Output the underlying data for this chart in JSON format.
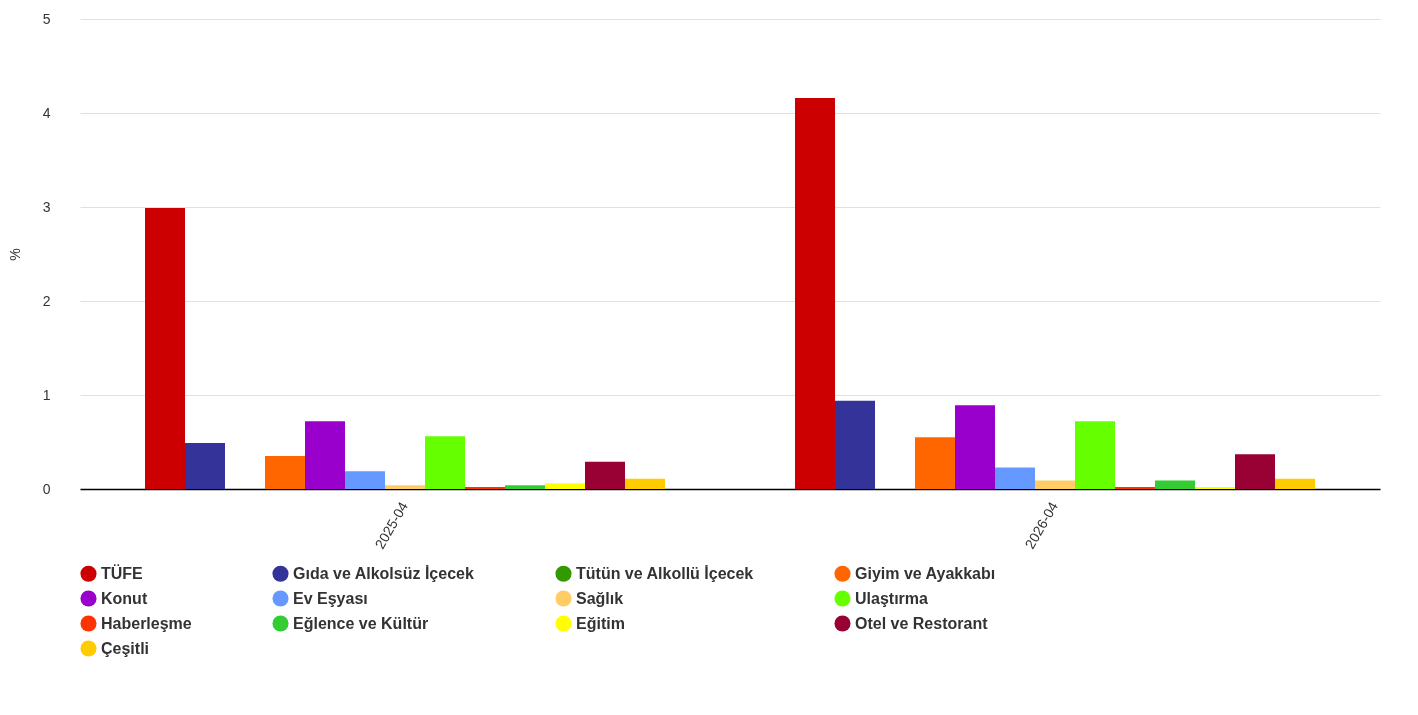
{
  "chart_data": {
    "type": "bar",
    "ylabel": "%",
    "categories": [
      "2025-04",
      "2026-04"
    ],
    "ylim": [
      0,
      5
    ],
    "yticks": [
      0,
      1,
      2,
      3,
      4,
      5
    ],
    "grid": "y",
    "legend": "bottom",
    "series": [
      {
        "name": "TÜFE",
        "color": "#cc0000",
        "values": [
          2.99,
          4.16
        ]
      },
      {
        "name": "Gıda ve Alkolsüz İçecek",
        "color": "#333399",
        "values": [
          0.49,
          0.94
        ]
      },
      {
        "name": "Tütün ve Alkollü İçecek",
        "color": "#339900",
        "values": [
          null,
          null
        ]
      },
      {
        "name": "Giyim ve Ayakkabı",
        "color": "#ff6600",
        "values": [
          0.35,
          0.55
        ]
      },
      {
        "name": "Konut",
        "color": "#9900cc",
        "values": [
          0.72,
          0.89
        ]
      },
      {
        "name": "Ev Eşyası",
        "color": "#6699ff",
        "values": [
          0.19,
          0.23
        ]
      },
      {
        "name": "Sağlık",
        "color": "#ffcc66",
        "values": [
          0.04,
          0.09
        ]
      },
      {
        "name": "Ulaştırma",
        "color": "#66ff00",
        "values": [
          0.56,
          0.72
        ]
      },
      {
        "name": "Haberleşme",
        "color": "#ff3300",
        "values": [
          0.02,
          0.02
        ]
      },
      {
        "name": "Eğlence ve Kültür",
        "color": "#33cc33",
        "values": [
          0.04,
          0.09
        ]
      },
      {
        "name": "Eğitim",
        "color": "#ffff00",
        "values": [
          0.06,
          0.02
        ]
      },
      {
        "name": "Otel ve Restorant",
        "color": "#990033",
        "values": [
          0.29,
          0.37
        ]
      },
      {
        "name": "Çeşitli",
        "color": "#ffcc00",
        "values": [
          0.11,
          0.11
        ]
      }
    ]
  }
}
